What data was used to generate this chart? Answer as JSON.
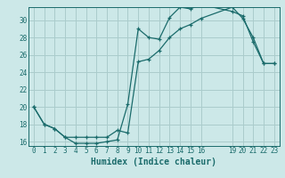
{
  "xlabel": "Humidex (Indice chaleur)",
  "bg_color": "#cce8e8",
  "grid_color": "#aacccc",
  "line_color": "#1a6b6b",
  "xlim": [
    -0.5,
    23.5
  ],
  "ylim": [
    15.5,
    31.5
  ],
  "xticks": [
    0,
    1,
    2,
    3,
    4,
    5,
    6,
    7,
    8,
    9,
    10,
    11,
    12,
    13,
    14,
    15,
    16,
    19,
    20,
    21,
    22,
    23
  ],
  "yticks": [
    16,
    18,
    20,
    22,
    24,
    26,
    28,
    30
  ],
  "line1_x": [
    0,
    1,
    2,
    3,
    4,
    5,
    6,
    7,
    8,
    9,
    10,
    11,
    12,
    13,
    14,
    15,
    16,
    19,
    20,
    21,
    22,
    23
  ],
  "line1_y": [
    20,
    18,
    17.5,
    16.5,
    15.8,
    15.8,
    15.8,
    16.0,
    16.2,
    20.3,
    29.0,
    28.0,
    27.8,
    30.3,
    31.5,
    31.3,
    31.8,
    31.0,
    30.5,
    27.5,
    25.0,
    25.0
  ],
  "line2_x": [
    0,
    1,
    2,
    3,
    4,
    5,
    6,
    7,
    8,
    9,
    10,
    11,
    12,
    13,
    14,
    15,
    16,
    19,
    20,
    21,
    22,
    23
  ],
  "line2_y": [
    20,
    18,
    17.5,
    16.5,
    16.5,
    16.5,
    16.5,
    16.5,
    17.3,
    17.0,
    25.2,
    25.5,
    26.5,
    28.0,
    29.0,
    29.5,
    30.2,
    31.5,
    30.2,
    28.0,
    25.0,
    25.0
  ],
  "xlabel_fontsize": 7,
  "tick_fontsize": 5.5
}
